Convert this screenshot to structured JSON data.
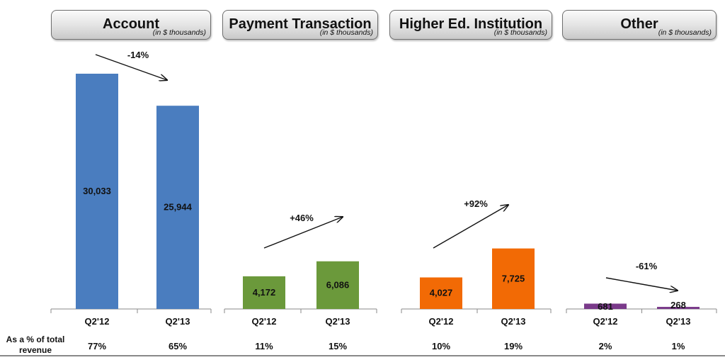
{
  "row_label_lines": [
    "As a % of total",
    "revenue"
  ],
  "chart_data": [
    {
      "type": "bar",
      "title": "Account",
      "unit_note": "(in $ thousands)",
      "categories": [
        "Q2'12",
        "Q2'13"
      ],
      "values": [
        30033,
        25944
      ],
      "value_labels": [
        "30,033",
        "25,944"
      ],
      "change_label": "-14%",
      "pct_of_total": [
        "77%",
        "65%"
      ],
      "color": "#4a7dbf"
    },
    {
      "type": "bar",
      "title": "Payment Transaction",
      "unit_note": "(in $ thousands)",
      "categories": [
        "Q2'12",
        "Q2'13"
      ],
      "values": [
        4172,
        6086
      ],
      "value_labels": [
        "4,172",
        "6,086"
      ],
      "change_label": "+46%",
      "pct_of_total": [
        "11%",
        "15%"
      ],
      "color": "#6b993b"
    },
    {
      "type": "bar",
      "title": "Higher Ed. Institution",
      "unit_note": "(in $ thousands)",
      "categories": [
        "Q2'12",
        "Q2'13"
      ],
      "values": [
        4027,
        7725
      ],
      "value_labels": [
        "4,027",
        "7,725"
      ],
      "change_label": "+92%",
      "pct_of_total": [
        "10%",
        "19%"
      ],
      "color": "#f26a05"
    },
    {
      "type": "bar",
      "title": "Other",
      "unit_note": "(in $ thousands)",
      "categories": [
        "Q2'12",
        "Q2'13"
      ],
      "values": [
        681,
        268
      ],
      "value_labels": [
        "681",
        "268"
      ],
      "change_label": "-61%",
      "pct_of_total": [
        "2%",
        "1%"
      ],
      "color": "#7a3a8a"
    }
  ]
}
